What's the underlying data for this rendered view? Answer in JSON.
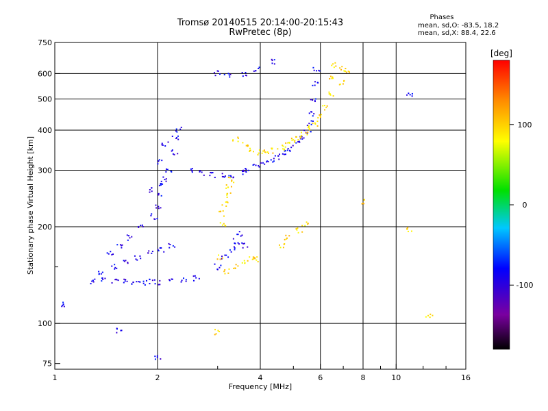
{
  "figure": {
    "title_line1": "Tromsø 20140515 20:14:00-20:15:43",
    "title_line2": "RwPretec (8p)",
    "stats_heading": "Phases",
    "stats_o": "mean, sd,O: -83.5, 18.2",
    "stats_x": "mean, sd,X:  88.4, 22.6"
  },
  "chart_data": {
    "type": "scatter",
    "xlabel": "Frequency [MHz]",
    "ylabel": "Stationary phase Virtual Height [km]",
    "x_scale": "log",
    "y_scale": "log",
    "xlim": [
      1,
      16
    ],
    "ylim": [
      72,
      750
    ],
    "x_ticks": [
      1,
      2,
      4,
      6,
      8,
      10,
      16
    ],
    "x_tick_labels": [
      "1",
      "2",
      "4",
      "6",
      "8",
      "10",
      "16"
    ],
    "x_minor_ticks": [
      3,
      5,
      7,
      9,
      12,
      14
    ],
    "y_ticks": [
      75,
      100,
      200,
      300,
      400,
      500,
      600,
      750
    ],
    "y_tick_labels": [
      "75",
      "100",
      "200",
      "300",
      "400",
      "500",
      "600",
      "750"
    ],
    "y_minor_ticks": [
      150
    ],
    "x_gridlines": [
      2,
      4,
      6,
      8,
      10
    ],
    "y_gridlines": [
      100,
      200,
      300,
      400,
      500,
      600
    ],
    "grid": true,
    "colorbar": {
      "label": "[deg]",
      "range": [
        -180,
        180
      ],
      "ticks": [
        -100,
        0,
        100
      ],
      "tick_labels": [
        "-100",
        "0",
        "100"
      ],
      "colormap": "rainbow: black-purple-blue-cyan-green-yellow-orange-red"
    },
    "series": [
      {
        "name": "O",
        "color_phase": -90,
        "points": [
          [
            1.3,
            135
          ],
          [
            1.4,
            138
          ],
          [
            1.5,
            136
          ],
          [
            1.6,
            135
          ],
          [
            1.7,
            134
          ],
          [
            1.8,
            134
          ],
          [
            1.9,
            135
          ],
          [
            2.0,
            134
          ],
          [
            2.2,
            135
          ],
          [
            2.4,
            136
          ],
          [
            2.6,
            138
          ],
          [
            1.35,
            145
          ],
          [
            1.5,
            150
          ],
          [
            1.6,
            155
          ],
          [
            1.75,
            160
          ],
          [
            1.9,
            165
          ],
          [
            2.05,
            170
          ],
          [
            2.2,
            175
          ],
          [
            1.45,
            165
          ],
          [
            1.55,
            175
          ],
          [
            1.65,
            185
          ],
          [
            1.8,
            200
          ],
          [
            1.95,
            215
          ],
          [
            2.0,
            230
          ],
          [
            2.05,
            250
          ],
          [
            2.05,
            270
          ],
          [
            1.9,
            260
          ],
          [
            2.1,
            280
          ],
          [
            2.15,
            300
          ],
          [
            2.05,
            320
          ],
          [
            2.25,
            340
          ],
          [
            2.1,
            360
          ],
          [
            2.25,
            380
          ],
          [
            2.3,
            400
          ],
          [
            2.5,
            300
          ],
          [
            2.7,
            295
          ],
          [
            2.9,
            290
          ],
          [
            3.1,
            288
          ],
          [
            3.3,
            290
          ],
          [
            3.5,
            295
          ],
          [
            3.7,
            300
          ],
          [
            3.9,
            308
          ],
          [
            4.1,
            315
          ],
          [
            4.3,
            322
          ],
          [
            4.5,
            330
          ],
          [
            4.7,
            340
          ],
          [
            4.9,
            350
          ],
          [
            5.1,
            362
          ],
          [
            5.3,
            378
          ],
          [
            5.5,
            395
          ],
          [
            5.6,
            420
          ],
          [
            5.7,
            450
          ],
          [
            5.75,
            500
          ],
          [
            5.8,
            560
          ],
          [
            5.85,
            620
          ],
          [
            3.0,
            150
          ],
          [
            3.15,
            160
          ],
          [
            3.3,
            170
          ],
          [
            3.4,
            180
          ],
          [
            3.5,
            190
          ],
          [
            3.6,
            175
          ],
          [
            3.2,
            595
          ],
          [
            3.6,
            598
          ],
          [
            3.9,
            620
          ],
          [
            3.0,
            600
          ],
          [
            4.4,
            655
          ],
          [
            1.05,
            115
          ],
          [
            1.55,
            95
          ],
          [
            2.0,
            78
          ],
          [
            11.0,
            520
          ]
        ]
      },
      {
        "name": "X",
        "color_phase": 95,
        "points": [
          [
            3.4,
            375
          ],
          [
            3.6,
            360
          ],
          [
            3.8,
            348
          ],
          [
            4.0,
            340
          ],
          [
            4.2,
            340
          ],
          [
            4.4,
            345
          ],
          [
            4.6,
            352
          ],
          [
            4.8,
            360
          ],
          [
            5.0,
            370
          ],
          [
            5.2,
            380
          ],
          [
            5.4,
            392
          ],
          [
            5.6,
            405
          ],
          [
            5.8,
            420
          ],
          [
            6.0,
            440
          ],
          [
            6.2,
            470
          ],
          [
            6.4,
            520
          ],
          [
            6.5,
            580
          ],
          [
            6.6,
            640
          ],
          [
            3.1,
            220
          ],
          [
            3.15,
            235
          ],
          [
            3.2,
            250
          ],
          [
            3.25,
            265
          ],
          [
            3.3,
            280
          ],
          [
            3.1,
            205
          ],
          [
            3.05,
            160
          ],
          [
            3.2,
            145
          ],
          [
            3.4,
            150
          ],
          [
            3.6,
            155
          ],
          [
            3.8,
            160
          ],
          [
            3.9,
            158
          ],
          [
            4.6,
            175
          ],
          [
            4.8,
            185
          ],
          [
            5.2,
            195
          ],
          [
            5.4,
            205
          ],
          [
            7.0,
            620
          ],
          [
            7.2,
            600
          ],
          [
            6.9,
            560
          ],
          [
            8.0,
            240
          ],
          [
            11.0,
            195
          ],
          [
            12.5,
            105
          ],
          [
            3.0,
            94
          ]
        ]
      }
    ]
  }
}
